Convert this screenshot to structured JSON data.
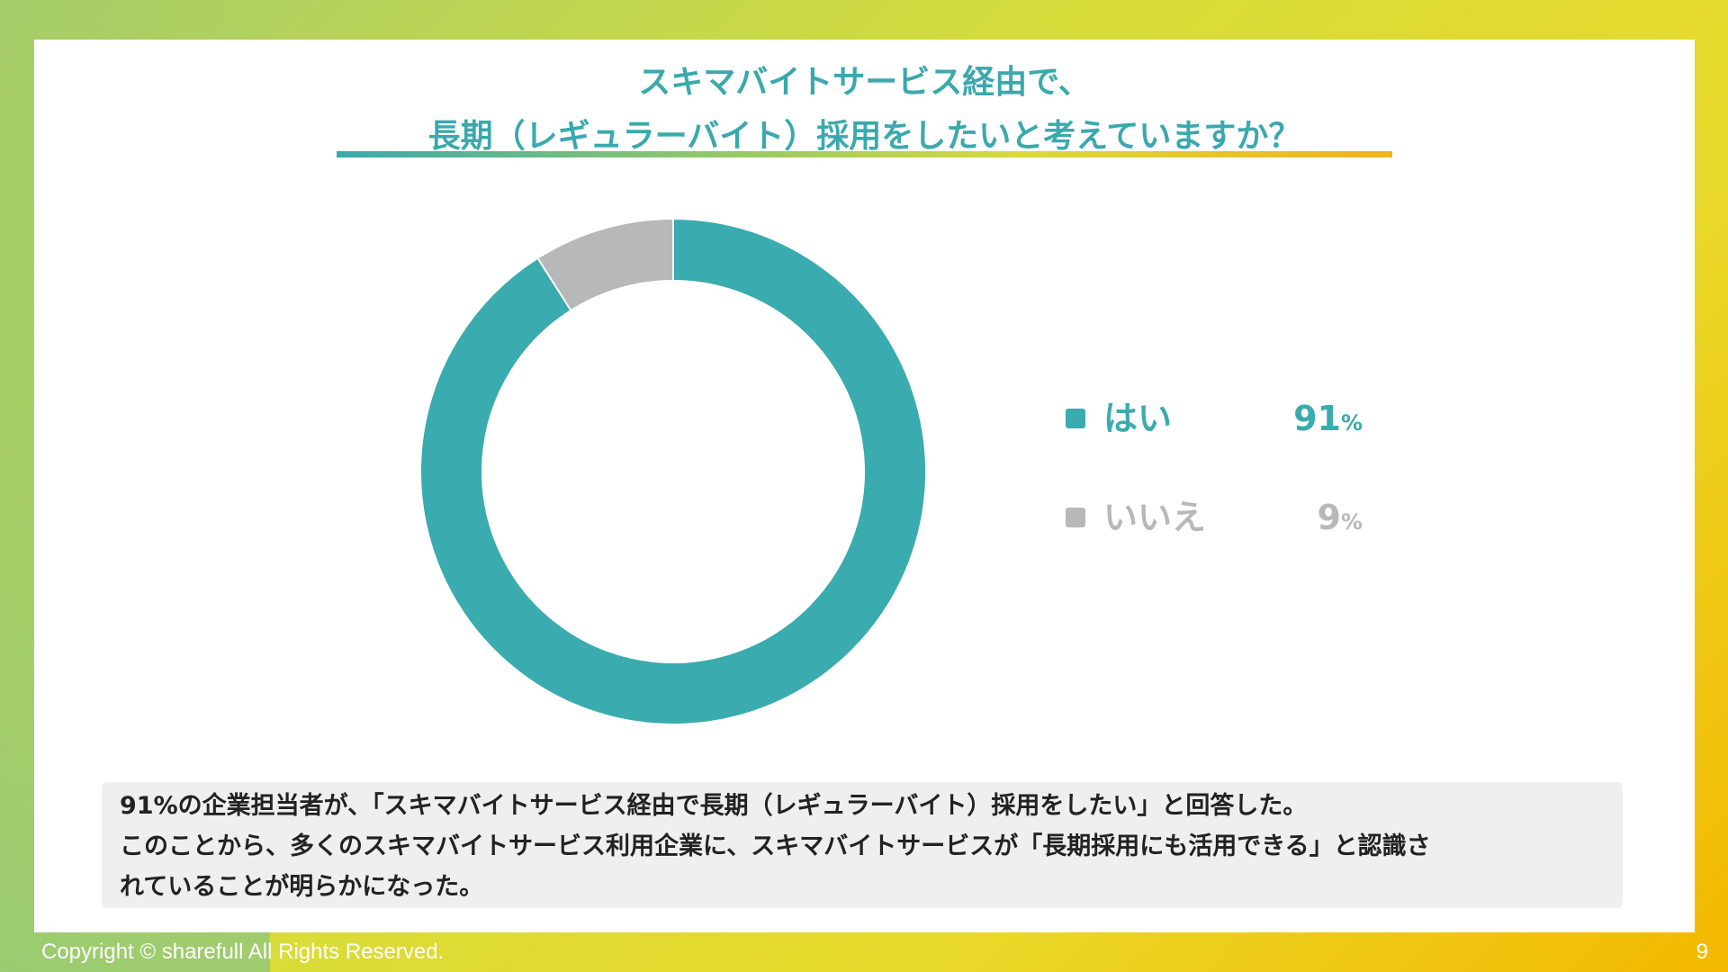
{
  "slide": {
    "title_line1": "スキマバイトサービス経由で、",
    "title_line2": "長期（レギュラーバイト）採用をしたいと考えていますか？",
    "summary_line1": "91%の企業担当者が、「スキマバイトサービス経由で長期（レギュラーバイト）採用をしたい」と回答した。",
    "summary_line2": "このことから、多くのスキマバイトサービス利用企業に、スキマバイトサービスが「長期採用にも活用できる」と認識さ",
    "summary_line3": "れていることが明らかになった。",
    "copyright": "Copyright © sharefull All Rights Reserved.",
    "page_number": "9"
  },
  "chart_data": {
    "type": "pie",
    "variant": "donut",
    "title": "スキマバイトサービス経由で、長期（レギュラーバイト）採用をしたいと考えていますか？",
    "categories": [
      "はい",
      "いいえ"
    ],
    "values": [
      91,
      9
    ],
    "value_labels": [
      "91",
      "9"
    ],
    "unit": "%",
    "colors": [
      "#3aabae",
      "#b8b8b8"
    ],
    "legend_position": "right"
  }
}
